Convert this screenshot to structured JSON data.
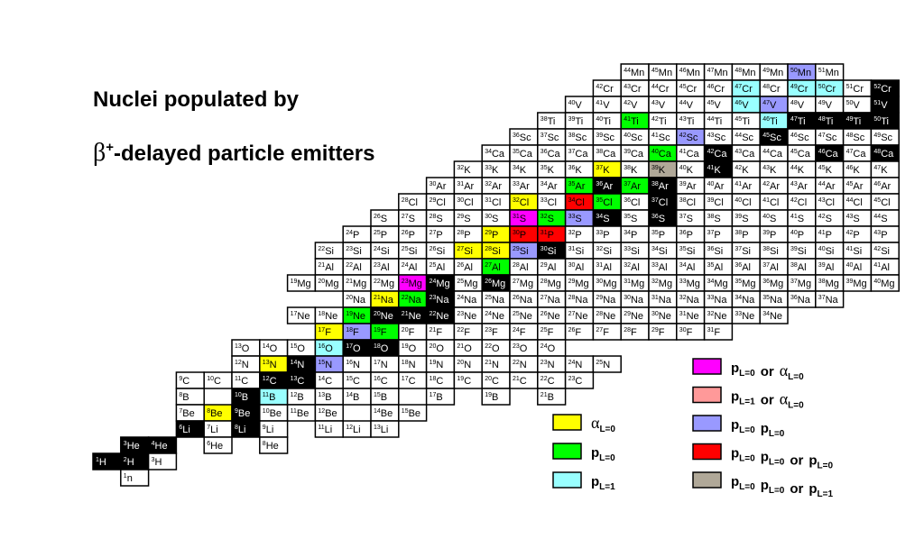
{
  "title": {
    "line1": "Nuclei populated by",
    "line2": {
      "symbol": "β",
      "sup": "+",
      "rest": "-delayed particle emitters"
    }
  },
  "chart": {
    "rows": [
      {
        "symbol": "Mn",
        "nuclei": [
          44,
          45,
          46,
          47,
          48,
          49,
          {
            "A": 50,
            "fill": "#9999ff"
          },
          51
        ]
      },
      {
        "symbol": "Cr",
        "nuclei": [
          42,
          43,
          44,
          45,
          46,
          {
            "A": 47,
            "fill": "#99ffff"
          },
          48,
          {
            "A": 49,
            "fill": "#99ffff"
          },
          {
            "A": 50,
            "fill": "#99ffff"
          },
          51,
          {
            "A": 52,
            "fill": "#000000"
          }
        ]
      },
      {
        "symbol": "V",
        "nuclei": [
          40,
          41,
          42,
          43,
          44,
          45,
          {
            "A": 46,
            "fill": "#99ffff"
          },
          {
            "A": 47,
            "fill": "#9999ff"
          },
          48,
          49,
          50,
          {
            "A": 51,
            "fill": "#000000"
          }
        ]
      },
      {
        "symbol": "Ti",
        "nuclei": [
          38,
          39,
          40,
          {
            "A": 41,
            "fill": "#00ff00"
          },
          42,
          43,
          44,
          45,
          {
            "A": 46,
            "fill": "#99ffff"
          },
          {
            "A": 47,
            "fill": "#000000"
          },
          {
            "A": 48,
            "fill": "#000000"
          },
          {
            "A": 49,
            "fill": "#000000"
          },
          {
            "A": 50,
            "fill": "#000000"
          }
        ]
      },
      {
        "symbol": "Sc",
        "nuclei": [
          36,
          37,
          38,
          39,
          40,
          41,
          {
            "A": 42,
            "fill": "#9999ff"
          },
          43,
          44,
          {
            "A": 45,
            "fill": "#000000"
          },
          46,
          47,
          48,
          49
        ]
      },
      {
        "symbol": "Ca",
        "nuclei": [
          34,
          35,
          36,
          37,
          38,
          39,
          {
            "A": 40,
            "fill": "#00ff00"
          },
          41,
          {
            "A": 42,
            "fill": "#000000"
          },
          43,
          44,
          45,
          {
            "A": 46,
            "fill": "#000000"
          },
          47,
          {
            "A": 48,
            "fill": "#000000"
          }
        ]
      },
      {
        "symbol": "K",
        "nuclei": [
          32,
          33,
          34,
          35,
          36,
          {
            "A": 37,
            "fill": "#ffff00"
          },
          38,
          {
            "A": 39,
            "fill": "#b0a898"
          },
          40,
          {
            "A": 41,
            "fill": "#000000"
          },
          42,
          43,
          44,
          45,
          46,
          47
        ]
      },
      {
        "symbol": "Ar",
        "nuclei": [
          30,
          31,
          32,
          33,
          34,
          {
            "A": 35,
            "fill": "#00ff00"
          },
          {
            "A": 36,
            "fill": "#000000"
          },
          {
            "A": 37,
            "fill": "#00ff00"
          },
          {
            "A": 38,
            "fill": "#000000"
          },
          39,
          40,
          41,
          42,
          43,
          44,
          45,
          46
        ]
      },
      {
        "symbol": "Cl",
        "nuclei": [
          28,
          29,
          30,
          31,
          {
            "A": 32,
            "fill": "#ffff00"
          },
          33,
          {
            "A": 34,
            "fill": "#ff0000"
          },
          {
            "A": 35,
            "fill": "#00ff00"
          },
          36,
          {
            "A": 37,
            "fill": "#000000"
          },
          38,
          39,
          40,
          41,
          42,
          43,
          44,
          45
        ]
      },
      {
        "symbol": "S",
        "nuclei": [
          26,
          27,
          28,
          29,
          30,
          {
            "A": 31,
            "fill": "#ff00ff"
          },
          {
            "A": 32,
            "fill": "#00ff00"
          },
          {
            "A": 33,
            "fill": "#9999ff"
          },
          {
            "A": 34,
            "fill": "#000000"
          },
          35,
          {
            "A": 36,
            "fill": "#000000"
          },
          37,
          38,
          39,
          40,
          41,
          42,
          43,
          44
        ]
      },
      {
        "symbol": "P",
        "nuclei": [
          24,
          25,
          26,
          27,
          28,
          {
            "A": 29,
            "fill": "#ffff00"
          },
          {
            "A": 30,
            "fill": "#ff0000"
          },
          {
            "A": 31,
            "fill": "#ff0000"
          },
          32,
          33,
          34,
          35,
          36,
          37,
          38,
          39,
          40,
          41,
          42,
          43
        ]
      },
      {
        "symbol": "Si",
        "nuclei": [
          22,
          23,
          24,
          25,
          26,
          {
            "A": 27,
            "fill": "#ffff00"
          },
          {
            "A": 28,
            "fill": "#ffff00"
          },
          {
            "A": 29,
            "fill": "#9999ff"
          },
          {
            "A": 30,
            "fill": "#000000"
          },
          31,
          32,
          33,
          34,
          35,
          36,
          37,
          38,
          39,
          40,
          41,
          42
        ]
      },
      {
        "symbol": "Al",
        "nuclei": [
          21,
          22,
          23,
          24,
          25,
          26,
          {
            "A": 27,
            "fill": "#00ff00"
          },
          28,
          29,
          30,
          31,
          32,
          33,
          34,
          35,
          36,
          37,
          38,
          39,
          40,
          41
        ]
      },
      {
        "symbol": "Mg",
        "nuclei": [
          19,
          20,
          21,
          22,
          {
            "A": 23,
            "fill": "#ff00ff"
          },
          {
            "A": 24,
            "fill": "#000000"
          },
          25,
          {
            "A": 26,
            "fill": "#000000"
          },
          27,
          28,
          29,
          30,
          31,
          32,
          33,
          34,
          35,
          36,
          37,
          38,
          39,
          40
        ]
      },
      {
        "symbol": "Na",
        "nuclei": [
          20,
          {
            "A": 21,
            "fill": "#ffff00"
          },
          {
            "A": 22,
            "fill": "#00ff00"
          },
          {
            "A": 23,
            "fill": "#000000"
          },
          24,
          25,
          26,
          27,
          28,
          29,
          30,
          31,
          32,
          33,
          34,
          35,
          36,
          37
        ]
      },
      {
        "symbol": "Ne",
        "nuclei": [
          17,
          18,
          {
            "A": 19,
            "fill": "#00ff00"
          },
          {
            "A": 20,
            "fill": "#000000"
          },
          {
            "A": 21,
            "fill": "#000000"
          },
          {
            "A": 22,
            "fill": "#000000"
          },
          23,
          24,
          25,
          26,
          27,
          28,
          29,
          30,
          31,
          32,
          33,
          34
        ]
      },
      {
        "symbol": "F",
        "nuclei": [
          {
            "A": 17,
            "fill": "#ffff00"
          },
          {
            "A": 18,
            "fill": "#9999ff"
          },
          {
            "A": 19,
            "fill": "#00ff00"
          },
          20,
          21,
          22,
          23,
          24,
          25,
          26,
          27,
          28,
          29,
          30,
          31
        ]
      },
      {
        "symbol": "O",
        "nuclei": [
          13,
          14,
          15,
          {
            "A": 16,
            "fill": "#99ffff"
          },
          {
            "A": 17,
            "fill": "#000000"
          },
          {
            "A": 18,
            "fill": "#000000"
          },
          19,
          20,
          21,
          22,
          23,
          24
        ]
      },
      {
        "symbol": "N",
        "nuclei": [
          12,
          {
            "A": 13,
            "fill": "#ffff00"
          },
          {
            "A": 14,
            "fill": "#000000"
          },
          {
            "A": 15,
            "fill": "#9999ff"
          },
          16,
          17,
          18,
          19,
          20,
          21,
          22,
          23,
          24,
          25
        ]
      },
      {
        "symbol": "C",
        "nuclei": [
          9,
          10,
          11,
          {
            "A": 12,
            "fill": "#000000"
          },
          {
            "A": 13,
            "fill": "#000000"
          },
          14,
          15,
          16,
          17,
          18,
          19,
          20,
          21,
          22,
          23
        ]
      },
      {
        "symbol": "B",
        "nuclei": [
          8,
          {
            "A": 10,
            "fill": "#000000"
          },
          {
            "A": 11,
            "fill": "#99ffff"
          },
          12,
          13,
          14,
          15,
          17,
          19,
          21
        ]
      },
      {
        "symbol": "Be",
        "nuclei": [
          7,
          {
            "A": 8,
            "fill": "#ffff00"
          },
          {
            "A": 9,
            "fill": "#000000"
          },
          10,
          11,
          12,
          14,
          15
        ]
      },
      {
        "symbol": "Li",
        "nuclei": [
          {
            "A": 6,
            "fill": "#000000"
          },
          7,
          {
            "A": 8,
            "fill": "#000000"
          },
          9,
          11,
          12,
          13
        ]
      },
      {
        "symbol": "He",
        "nuclei": [
          {
            "A": 3,
            "fill": "#000000"
          },
          {
            "A": 4,
            "fill": "#000000"
          },
          6,
          8
        ]
      },
      {
        "symbol": "H",
        "nuclei": [
          {
            "A": 1,
            "fill": "#000000"
          },
          {
            "A": 2,
            "fill": "#000000"
          },
          3
        ]
      },
      {
        "symbol": "n",
        "nuclei": [
          1
        ]
      }
    ]
  },
  "legend": [
    {
      "color": "#ffff00",
      "parts": [
        {
          "text": "α",
          "sub": "L=0"
        }
      ]
    },
    {
      "color": "#00ff00",
      "parts": [
        {
          "text": "p",
          "sub": "L=0"
        }
      ]
    },
    {
      "color": "#99ffff",
      "parts": [
        {
          "text": "p",
          "sub": "L=1"
        }
      ]
    },
    {
      "color": "#ff00ff",
      "parts": [
        {
          "text": "p",
          "sub": "L=0"
        },
        {
          "text": "or"
        },
        {
          "text": "α",
          "sub": "L=0"
        }
      ]
    },
    {
      "color": "#ff9999",
      "parts": [
        {
          "text": "p",
          "sub": "L=1"
        },
        {
          "text": "or"
        },
        {
          "text": "α",
          "sub": "L=0"
        }
      ]
    },
    {
      "color": "#9999ff",
      "parts": [
        {
          "text": "p",
          "sub": "L=0"
        },
        {
          "text": "p",
          "sub": "L=0"
        }
      ]
    },
    {
      "color": "#ff0000",
      "parts": [
        {
          "text": "p",
          "sub": "L=0"
        },
        {
          "text": "p",
          "sub": "L=0"
        },
        {
          "text": "or"
        },
        {
          "text": "p",
          "sub": "L=0"
        }
      ]
    },
    {
      "color": "#b0a898",
      "parts": [
        {
          "text": "p",
          "sub": "L=0"
        },
        {
          "text": "p",
          "sub": "L=0"
        },
        {
          "text": "or"
        },
        {
          "text": "p",
          "sub": "L=1"
        }
      ]
    }
  ]
}
